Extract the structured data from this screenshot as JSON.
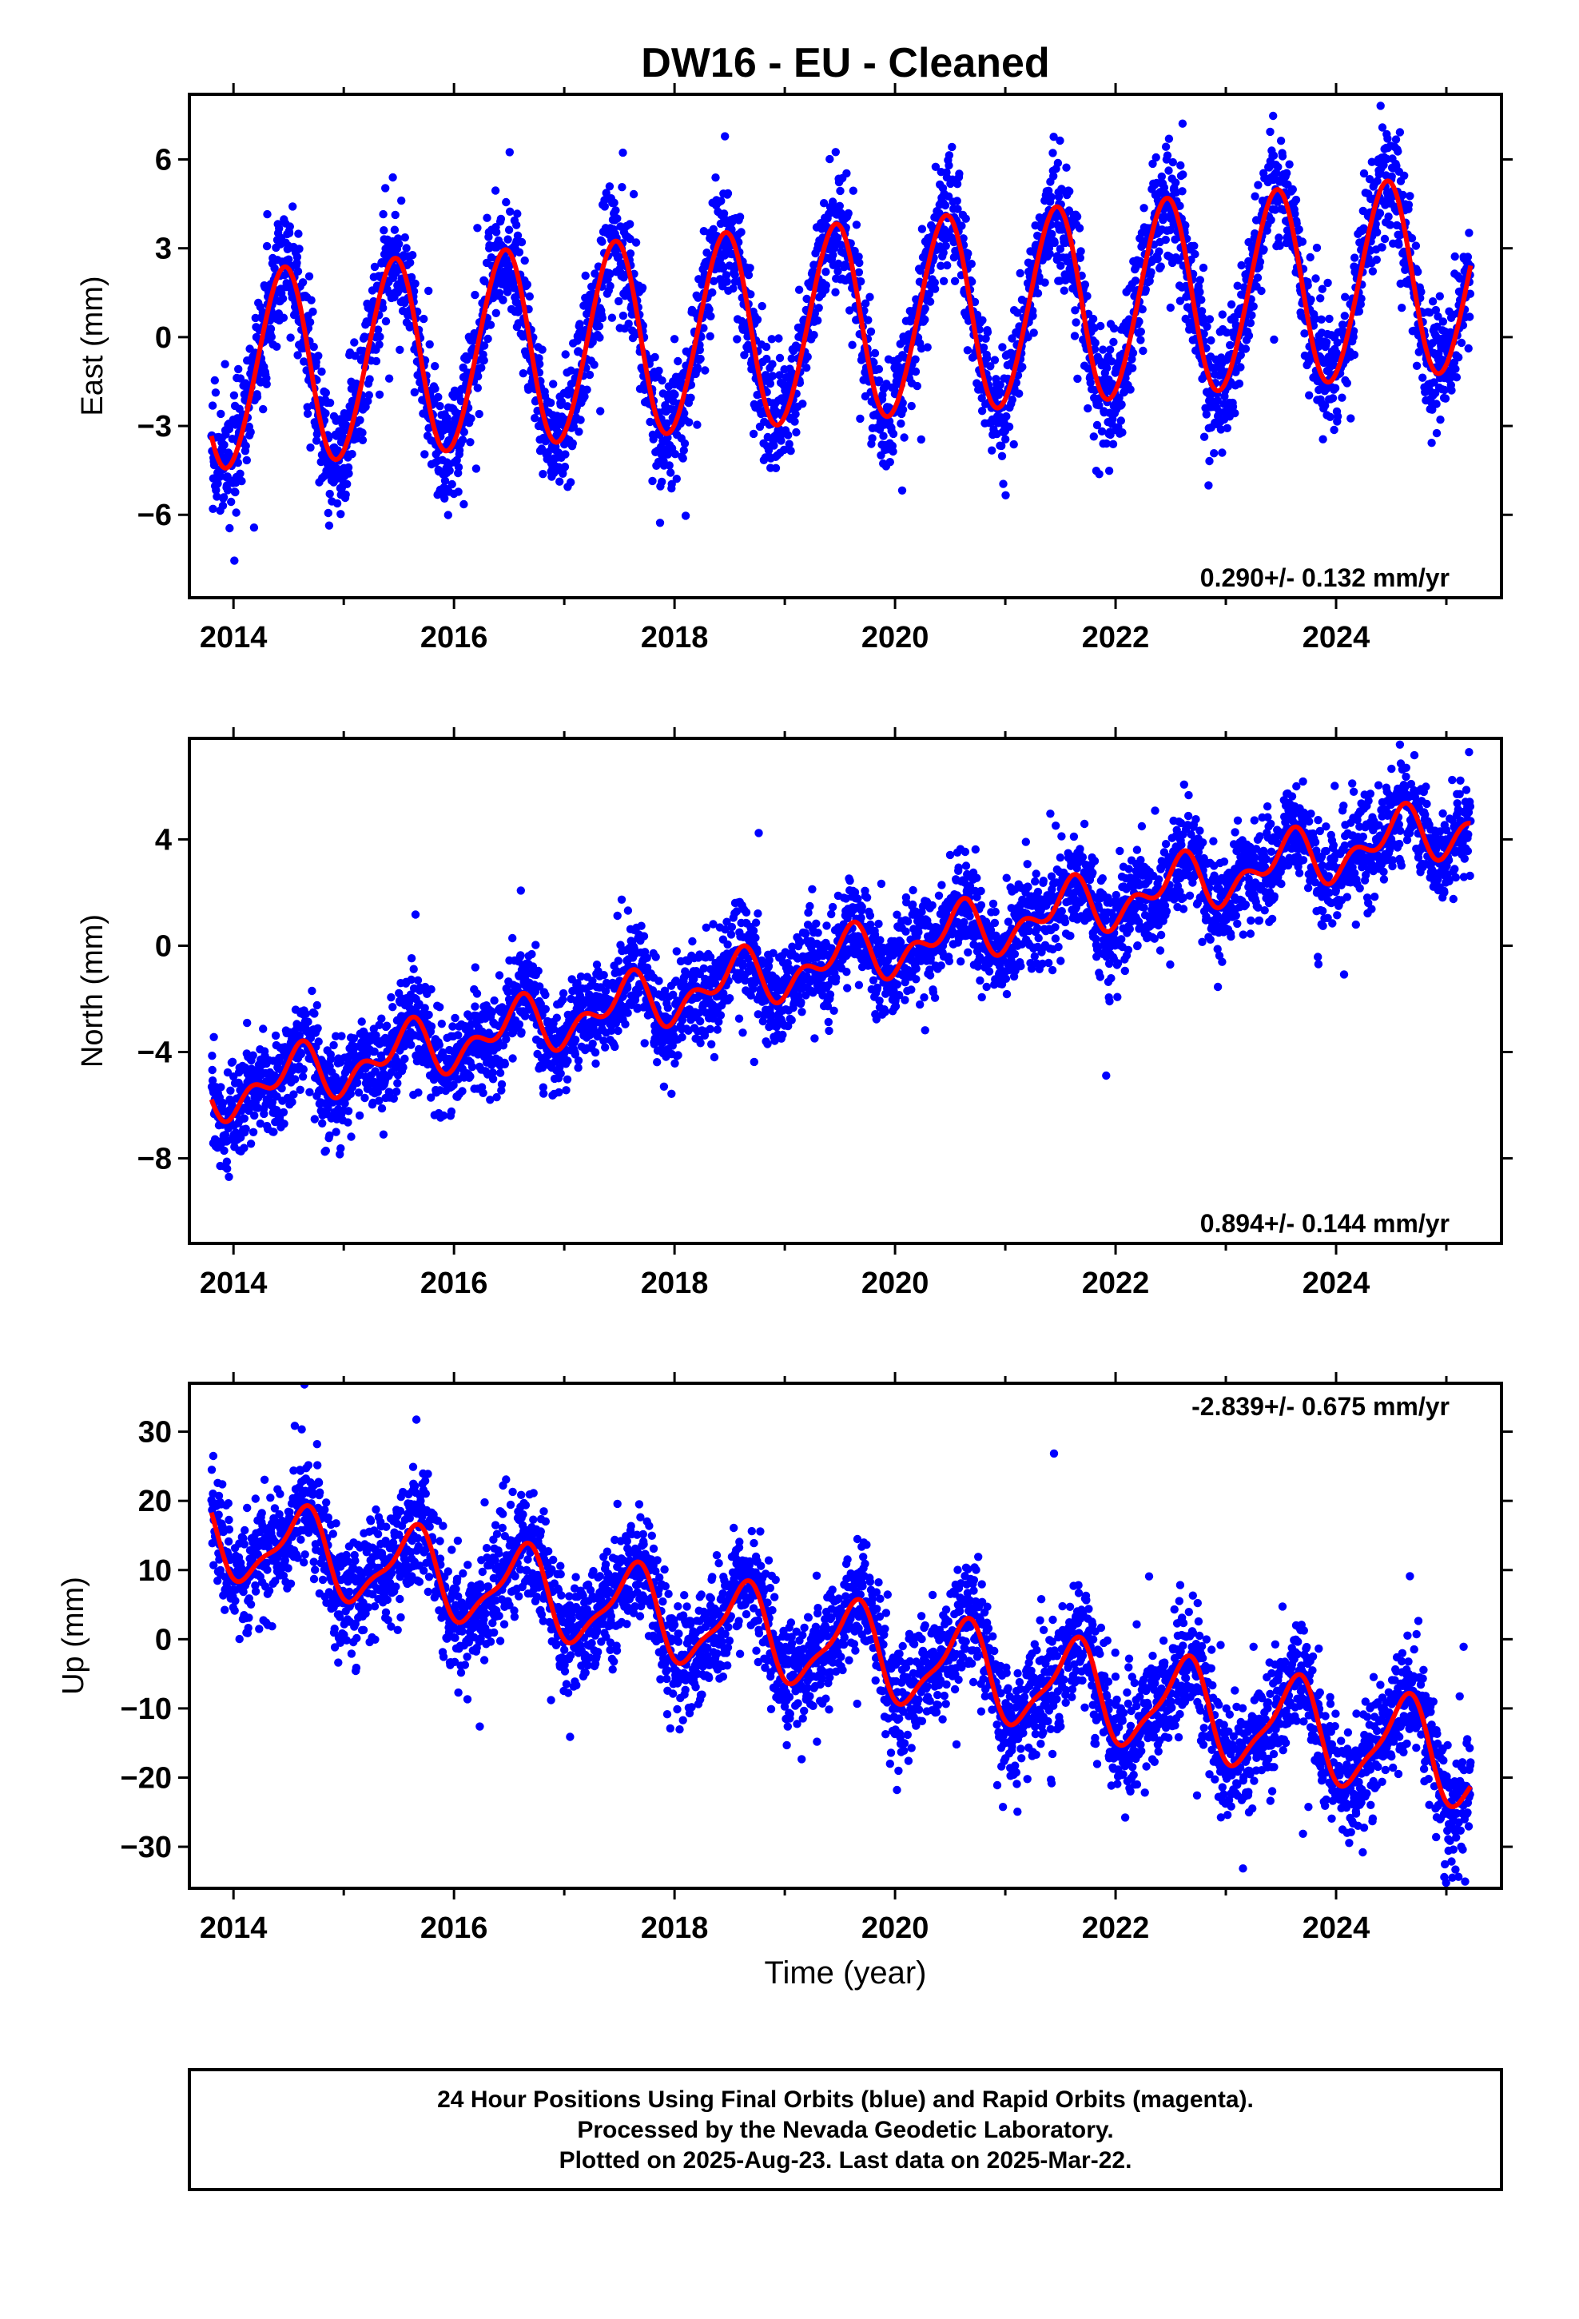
{
  "title": "DW16  - EU - Cleaned",
  "colors": {
    "points": "#0000ff",
    "fit": "#ff0000",
    "frame": "#000000"
  },
  "chart_data": [
    {
      "type": "scatter",
      "component": "east",
      "ylabel": "East (mm)",
      "xlabel": "",
      "xlim": [
        2013.6,
        2025.5
      ],
      "ylim": [
        -8.8,
        8.2
      ],
      "xticks": [
        2014,
        2016,
        2018,
        2020,
        2022,
        2024
      ],
      "yticks": [
        -6,
        -3,
        0,
        3,
        6
      ],
      "rate_label": "0.290+/- 0.132 mm/yr",
      "rate_position": "bottom-right",
      "data_start": 2013.8,
      "data_end": 2025.22,
      "fit": {
        "offset_at_start": -1.2,
        "trend": 0.29,
        "annual_amplitude_start": 3.3,
        "annual_amplitude_end": 3.3,
        "annual_peak": 0.45,
        "semiannual_amplitude": 0.2,
        "noise_sigma": 1.0
      }
    },
    {
      "type": "scatter",
      "component": "north",
      "ylabel": "North (mm)",
      "xlabel": "",
      "xlim": [
        2013.6,
        2025.5
      ],
      "ylim": [
        -11.2,
        7.8
      ],
      "xticks": [
        2014,
        2016,
        2018,
        2020,
        2022,
        2024
      ],
      "yticks": [
        -8,
        -4,
        0,
        4
      ],
      "rate_label": "0.894+/- 0.144 mm/yr",
      "rate_position": "bottom-right",
      "data_start": 2013.8,
      "data_end": 2025.22,
      "fit": {
        "offset_at_start": -5.6,
        "trend": 0.894,
        "annual_amplitude_start": 0.8,
        "annual_amplitude_end": 0.8,
        "annual_peak": 0.55,
        "semiannual_amplitude": 0.6,
        "noise_sigma": 0.9
      }
    },
    {
      "type": "scatter",
      "component": "up",
      "ylabel": "Up (mm)",
      "xlabel": "Time (year)",
      "xlim": [
        2013.6,
        2025.5
      ],
      "ylim": [
        -36,
        37
      ],
      "xticks": [
        2014,
        2016,
        2018,
        2020,
        2022,
        2024
      ],
      "yticks": [
        -30,
        -20,
        -10,
        0,
        10,
        20,
        30
      ],
      "rate_label": "-2.839+/- 0.675 mm/yr",
      "rate_position": "top-right",
      "data_start": 2013.8,
      "data_end": 2025.22,
      "fit": {
        "offset_at_start": 15,
        "trend": -2.839,
        "annual_amplitude_start": 5.5,
        "annual_amplitude_end": 7.0,
        "annual_peak": 0.62,
        "semiannual_amplitude": 1.8,
        "noise_sigma": 4.2
      }
    }
  ],
  "footer": {
    "line1": "24 Hour Positions Using Final Orbits (blue) and Rapid Orbits (magenta).",
    "line2": "Processed by the Nevada Geodetic Laboratory.",
    "line3": "Plotted on 2025-Aug-23. Last data on 2025-Mar-22."
  }
}
